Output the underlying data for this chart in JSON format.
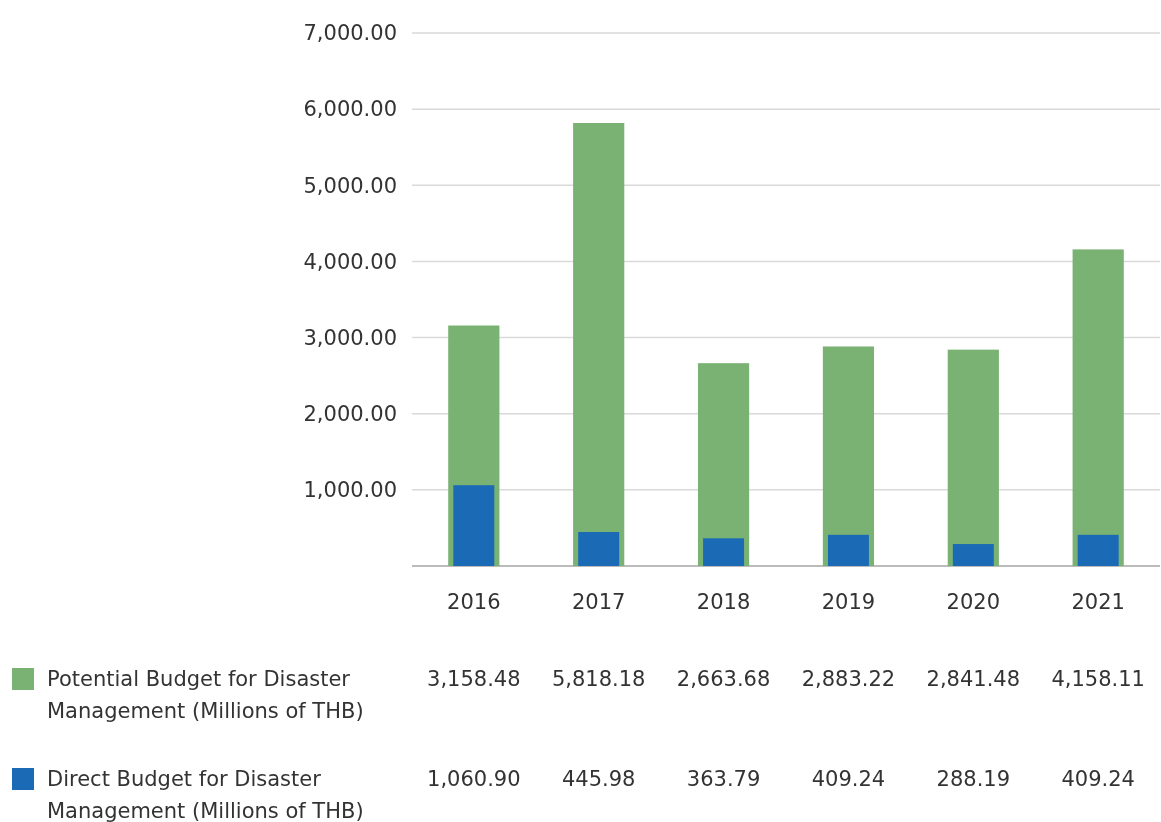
{
  "chart_data": {
    "type": "bar",
    "categories": [
      "2016",
      "2017",
      "2018",
      "2019",
      "2020",
      "2021"
    ],
    "series": [
      {
        "name": "Potential Budget for Disaster Management (Millions of THB)",
        "color": "#79b273",
        "values": [
          3158.48,
          5818.18,
          2663.68,
          2883.22,
          2841.48,
          4158.11
        ],
        "value_labels": [
          "3,158.48",
          "5,818.18",
          "2,663.68",
          "2,883.22",
          "2,841.48",
          "4,158.11"
        ]
      },
      {
        "name": "Direct Budget for Disaster Management (Millions of THB)",
        "color": "#1a6ab5",
        "values": [
          1060.9,
          445.98,
          363.79,
          409.24,
          288.19,
          409.24
        ],
        "value_labels": [
          "1,060.90",
          "445.98",
          "363.79",
          "409.24",
          "288.19",
          "409.24"
        ]
      }
    ],
    "ylim": [
      0,
      7000
    ],
    "yticks": [
      {
        "value": 0,
        "label": null
      },
      {
        "value": 1000,
        "label": "1,000.00"
      },
      {
        "value": 2000,
        "label": "2,000.00"
      },
      {
        "value": 3000,
        "label": "3,000.00"
      },
      {
        "value": 4000,
        "label": "4,000.00"
      },
      {
        "value": 5000,
        "label": "5,000.00"
      },
      {
        "value": 6000,
        "label": "6,000.00"
      },
      {
        "value": 7000,
        "label": "7,000.00"
      }
    ],
    "grid": "y",
    "legend": "bottom"
  }
}
